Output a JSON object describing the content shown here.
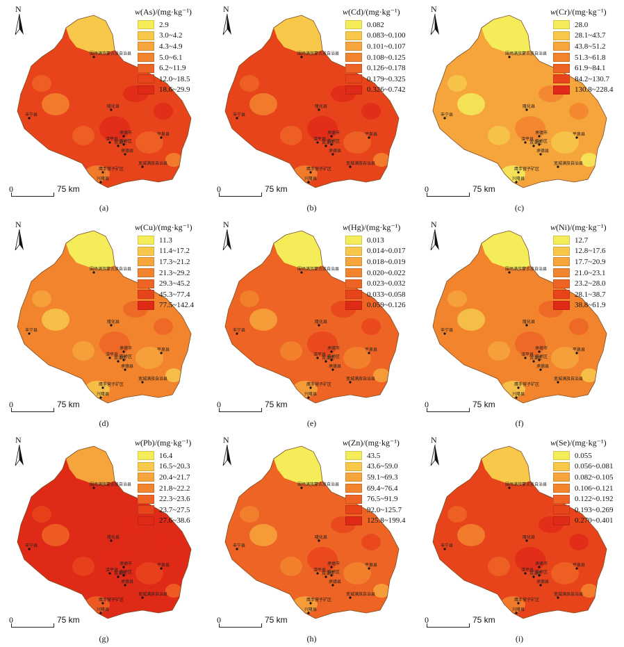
{
  "north_label": "N",
  "scale": {
    "zero": "0",
    "distance": "75 km"
  },
  "cities": [
    "围场满族蒙古族自治县",
    "隆化县",
    "丰宁县",
    "承德市",
    "滦平县",
    "双滦区",
    "双桥区",
    "平泉县",
    "承德县",
    "宽城满族自治县",
    "鹰手营子矿区",
    "兴隆县"
  ],
  "colors": {
    "ramp": [
      "#f5ec5a",
      "#f7c84a",
      "#f6a43c",
      "#f2842e",
      "#ee6424",
      "#e8441c",
      "#e02a18"
    ]
  },
  "panels": [
    {
      "id": "a",
      "caption": "(a)",
      "element": "As",
      "title_prefix": "w",
      "title": "(As)/(mg·kg⁻¹)",
      "classes": [
        "2.9",
        "3.0~4.2",
        "4.3~4.9",
        "5.0~6.1",
        "6.2~11.9",
        "12.0~18.5",
        "18.6~29.9"
      ],
      "dominant": 5
    },
    {
      "id": "b",
      "caption": "(b)",
      "element": "Cd",
      "title_prefix": "w",
      "title": "(Cd)/(mg·kg⁻¹)",
      "classes": [
        "0.082",
        "0.083~0.100",
        "0.101~0.107",
        "0.108~0.125",
        "0.126~0.178",
        "0.179~0.325",
        "0.326~0.742"
      ],
      "dominant": 5
    },
    {
      "id": "c",
      "caption": "(c)",
      "element": "Cr",
      "title_prefix": "w",
      "title": "(Cr)/(mg·kg⁻¹)",
      "classes": [
        "28.0",
        "28.1~43.7",
        "43.8~51.2",
        "51.3~61.8",
        "61.9~84.1",
        "84.2~130.7",
        "130.8~228.4"
      ],
      "dominant": 2
    },
    {
      "id": "d",
      "caption": "(d)",
      "element": "Cu",
      "title_prefix": "w",
      "title": "(Cu)/(mg·kg⁻¹)",
      "classes": [
        "11.3",
        "11.4~17.2",
        "17.3~21.2",
        "21.3~29.2",
        "29.3~45.2",
        "45.3~77.4",
        "77.5~142.4"
      ],
      "dominant": 3
    },
    {
      "id": "e",
      "caption": "(e)",
      "element": "Hg",
      "title_prefix": "w",
      "title": "(Hg)/(mg·kg⁻¹)",
      "classes": [
        "0.013",
        "0.014~0.017",
        "0.018~0.019",
        "0.020~0.022",
        "0.023~0.032",
        "0.033~0.058",
        "0.059~0.126"
      ],
      "dominant": 4
    },
    {
      "id": "f",
      "caption": "(f)",
      "element": "Ni",
      "title_prefix": "w",
      "title": "(Ni)/(mg·kg⁻¹)",
      "classes": [
        "12.7",
        "12.8~17.6",
        "17.7~20.9",
        "21.0~23.1",
        "23.2~28.0",
        "28.1~38.7",
        "38.8~61.9"
      ],
      "dominant": 3
    },
    {
      "id": "g",
      "caption": "(g)",
      "element": "Pb",
      "title_prefix": "w",
      "title": "(Pb)/(mg·kg⁻¹)",
      "classes": [
        "16.4",
        "16.5~20.3",
        "20.4~21.7",
        "21.8~22.2",
        "22.3~23.6",
        "23.7~27.5",
        "27.6~38.6"
      ],
      "dominant": 6
    },
    {
      "id": "h",
      "caption": "(h)",
      "element": "Zn",
      "title_prefix": "w",
      "title": "(Zn)/(mg·kg⁻¹)",
      "classes": [
        "43.5",
        "43.6~59.0",
        "59.1~69.3",
        "69.4~76.4",
        "76.5~91.9",
        "92.0~125.7",
        "125.8~199.4"
      ],
      "dominant": 4
    },
    {
      "id": "i",
      "caption": "(i)",
      "element": "Se",
      "title_prefix": "w",
      "title": "(Se)/(mg·kg⁻¹)",
      "classes": [
        "0.055",
        "0.056~0.081",
        "0.082~0.105",
        "0.106~0.121",
        "0.122~0.192",
        "0.193~0.269",
        "0.270~0.401"
      ],
      "dominant": 5
    }
  ]
}
